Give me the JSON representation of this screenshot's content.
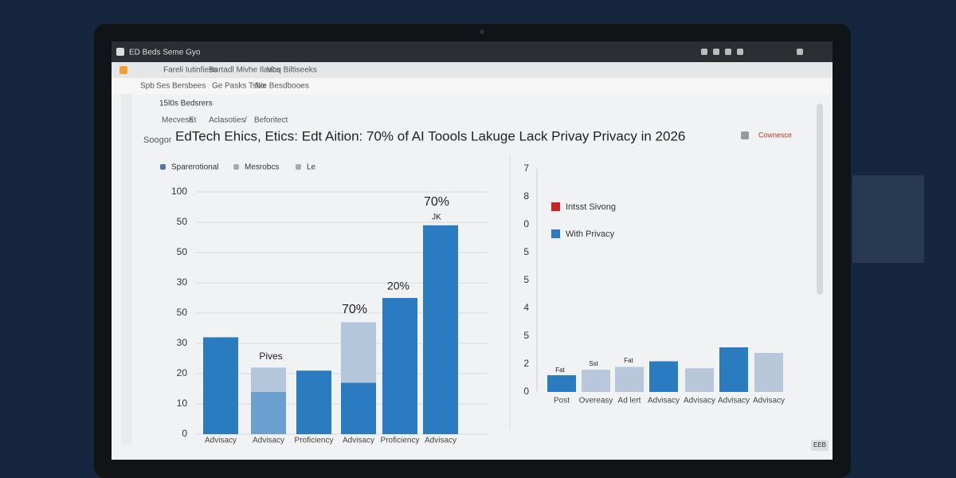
{
  "window": {
    "title": "ED Beds Seme Gyo",
    "tabs": [
      "Fareli Iutinfiess",
      "Bartadl Mivhe Ilaacs",
      "Vhq Biltiseeks"
    ],
    "toolbar": [
      "Spb",
      "Ses",
      "Bersbees",
      "Ge Pasks Tsbo",
      "Nie Besdbooes"
    ]
  },
  "sidebar": {
    "section": "15l0s Bedsrers"
  },
  "breadcrumb": [
    "Mecvess",
    "Et",
    "Aclasoties",
    "/",
    "Beforitect"
  ],
  "page": {
    "prefix": "Soogor",
    "title": "EdTech Ehics, Etics: Edt Aition: 70% of AI Toools Lakuge Lack Privay Privacy in 2026",
    "action": "Cownesce",
    "filters": [
      "Sparerotional",
      "Mesrobcs",
      "Le"
    ],
    "badge": "EEB"
  },
  "chart_data": [
    {
      "type": "bar",
      "stacked": true,
      "categories": [
        "Advisacy",
        "Advisacy",
        "Proficiency",
        "Advisacy",
        "Proficiency",
        "Advisacy"
      ],
      "series": [
        {
          "color": "#2b7bc0",
          "colors": [
            "#2b7bc0",
            "#6a9fd0",
            "#2b7bc0",
            "#2b7bc0",
            "#2b7bc0",
            "#2b7bc0"
          ],
          "values": [
            32,
            14,
            21,
            17,
            45,
            69
          ]
        },
        {
          "color": "#b3c6dc",
          "values": [
            null,
            8,
            null,
            20,
            null,
            null
          ]
        }
      ],
      "ylim": [
        0,
        80
      ],
      "yticks": [
        0,
        10,
        20,
        30,
        {
          "value": 40,
          "label": "50"
        },
        {
          "value": 50,
          "label": "30"
        },
        {
          "value": 60,
          "label": "50"
        },
        {
          "value": 70,
          "label": "50"
        },
        {
          "value": 80,
          "label": "100"
        }
      ],
      "grid": true,
      "annotations": [
        "Pives",
        "70%",
        "20%",
        "70%",
        "JK"
      ]
    },
    {
      "type": "bar",
      "stacked": true,
      "categories": [
        "Post",
        "Overeasy",
        "Ad lert",
        "Advisacy",
        "Advisacy",
        "Advisacy",
        "Advisacy"
      ],
      "series": [
        {
          "color": "#2b7bc0",
          "values": [
            0.6,
            null,
            null,
            1.1,
            null,
            1.6,
            null
          ]
        },
        {
          "color": "#b8c8da",
          "values": [
            null,
            0.8,
            0.9,
            null,
            0.85,
            null,
            1.4
          ]
        }
      ],
      "ylim": [
        0,
        8
      ],
      "yticks": [
        0,
        {
          "value": 1,
          "label": "2"
        },
        {
          "value": 2,
          "label": "5"
        },
        {
          "value": 3,
          "label": "4"
        },
        {
          "value": 4,
          "label": "5"
        },
        5,
        {
          "value": 6,
          "label": "0"
        },
        {
          "value": 7,
          "label": "8"
        },
        {
          "value": 8,
          "label": "7"
        }
      ],
      "grid": false,
      "legend": [
        {
          "name": "Intsst Sivong",
          "color": "#c62828"
        },
        {
          "name": "With Privacy",
          "color": "#2b7bc0"
        }
      ],
      "legend_position": "upper left",
      "annotations": [
        "Fat",
        "Sst",
        "Fat"
      ]
    }
  ]
}
